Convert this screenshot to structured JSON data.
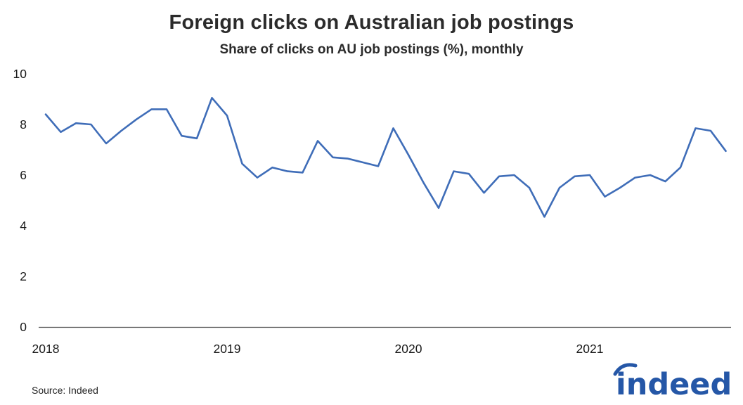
{
  "chart_data": {
    "type": "line",
    "title": "Foreign clicks on Australian job postings",
    "subtitle": "Share of clicks on AU job postings (%), monthly",
    "source": "Source: Indeed",
    "frequency": "monthly",
    "grid": false,
    "legend": "none",
    "ylim": [
      0,
      10
    ],
    "y_ticks": [
      0,
      2,
      4,
      6,
      8,
      10
    ],
    "x_tick_labels": [
      {
        "label": "2018",
        "month_index": 0
      },
      {
        "label": "2019",
        "month_index": 12
      },
      {
        "label": "2020",
        "month_index": 24
      },
      {
        "label": "2021",
        "month_index": 36
      }
    ],
    "x": [
      "2018-01",
      "2018-02",
      "2018-03",
      "2018-04",
      "2018-05",
      "2018-06",
      "2018-07",
      "2018-08",
      "2018-09",
      "2018-10",
      "2018-11",
      "2018-12",
      "2019-01",
      "2019-02",
      "2019-03",
      "2019-04",
      "2019-05",
      "2019-06",
      "2019-07",
      "2019-08",
      "2019-09",
      "2019-10",
      "2019-11",
      "2019-12",
      "2020-01",
      "2020-02",
      "2020-03",
      "2020-04",
      "2020-05",
      "2020-06",
      "2020-07",
      "2020-08",
      "2020-09",
      "2020-10",
      "2020-11",
      "2020-12",
      "2021-01",
      "2021-02",
      "2021-03",
      "2021-04",
      "2021-05",
      "2021-06",
      "2021-07",
      "2021-08",
      "2021-09",
      "2021-10"
    ],
    "series": [
      {
        "name": "Share of clicks on AU job postings (%)",
        "values": [
          8.4,
          7.7,
          8.05,
          8.0,
          7.25,
          7.75,
          8.2,
          8.6,
          8.6,
          7.55,
          7.45,
          9.05,
          8.35,
          6.45,
          5.9,
          6.3,
          6.15,
          6.1,
          7.35,
          6.7,
          6.65,
          6.5,
          6.35,
          7.85,
          6.8,
          5.7,
          4.7,
          6.15,
          6.05,
          5.3,
          5.95,
          6.0,
          5.5,
          4.35,
          5.5,
          5.95,
          6.0,
          5.15,
          5.5,
          5.9,
          6.0,
          5.75,
          6.3,
          7.85,
          7.75,
          6.95
        ]
      }
    ],
    "line_color": "#3f6db8",
    "axis_color": "#4d4d4d",
    "tick_text_color": "#1a1a1a"
  },
  "branding": {
    "logo_text": "indeed",
    "logo_color": "#2557a7"
  }
}
